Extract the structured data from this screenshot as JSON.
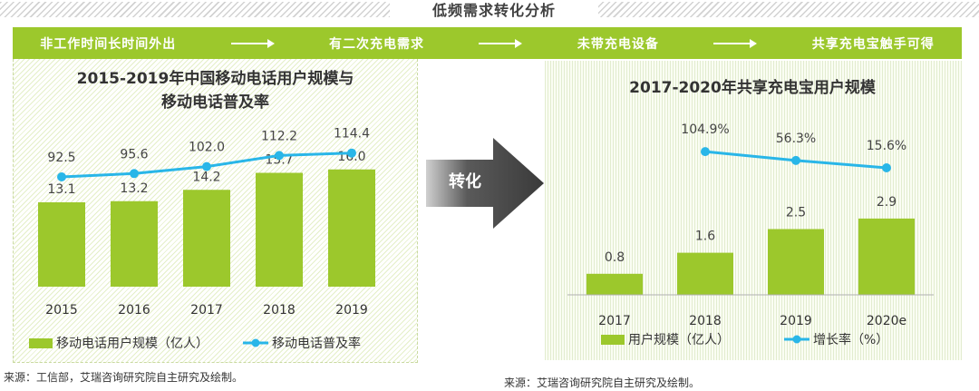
{
  "header": {
    "title": "低频需求转化分析"
  },
  "flow": {
    "steps": [
      "非工作时间长时间外出",
      "有二次充电需求",
      "未带充电设备",
      "共享充电宝触手可得"
    ]
  },
  "transition": {
    "label": "转化"
  },
  "colors": {
    "bar": "#9cc82c",
    "line": "#29b6e8",
    "flow_bar": "#9cc82c",
    "arrow_dark": "#4a4a4a",
    "arrow_light": "#c8c8c8"
  },
  "chart_data": [
    {
      "type": "bar",
      "title": "2015-2019年中国移动电话用户规模与\n移动电话普及率",
      "title_lines": [
        "2015-2019年中国移动电话用户规模与",
        "移动电话普及率"
      ],
      "categories": [
        "2015",
        "2016",
        "2017",
        "2018",
        "2019"
      ],
      "series": [
        {
          "name": "移动电话用户规模（亿人）",
          "kind": "bar",
          "values": [
            13.1,
            13.2,
            14.2,
            15.7,
            16.0
          ],
          "labels": [
            "13.1",
            "13.2",
            "14.2",
            "15.7",
            "16.0"
          ]
        },
        {
          "name": "移动电话普及率",
          "kind": "line",
          "values": [
            92.5,
            95.6,
            102.0,
            112.2,
            114.4
          ],
          "labels": [
            "92.5",
            "95.6",
            "102.0",
            "112.2",
            "114.4"
          ]
        }
      ],
      "legend_position": "bottom-left",
      "grid": false
    },
    {
      "type": "bar",
      "title": "2017-2020年共享充电宝用户规模",
      "categories": [
        "2017",
        "2018",
        "2019",
        "2020e"
      ],
      "series": [
        {
          "name": "用户规模（亿人）",
          "kind": "bar",
          "values": [
            0.8,
            1.6,
            2.5,
            2.9
          ],
          "labels": [
            "0.8",
            "1.6",
            "2.5",
            "2.9"
          ]
        },
        {
          "name": "增长率（%）",
          "kind": "line",
          "values": [
            null,
            104.9,
            56.3,
            15.6
          ],
          "labels": [
            "",
            "104.9%",
            "56.3%",
            "15.6%"
          ]
        }
      ],
      "legend_position": "bottom",
      "grid": false
    }
  ],
  "sources": {
    "left": "来源：工信部，艾瑞咨询研究院自主研究及绘制。",
    "right": "来源：艾瑞咨询研究院自主研究及绘制。"
  }
}
